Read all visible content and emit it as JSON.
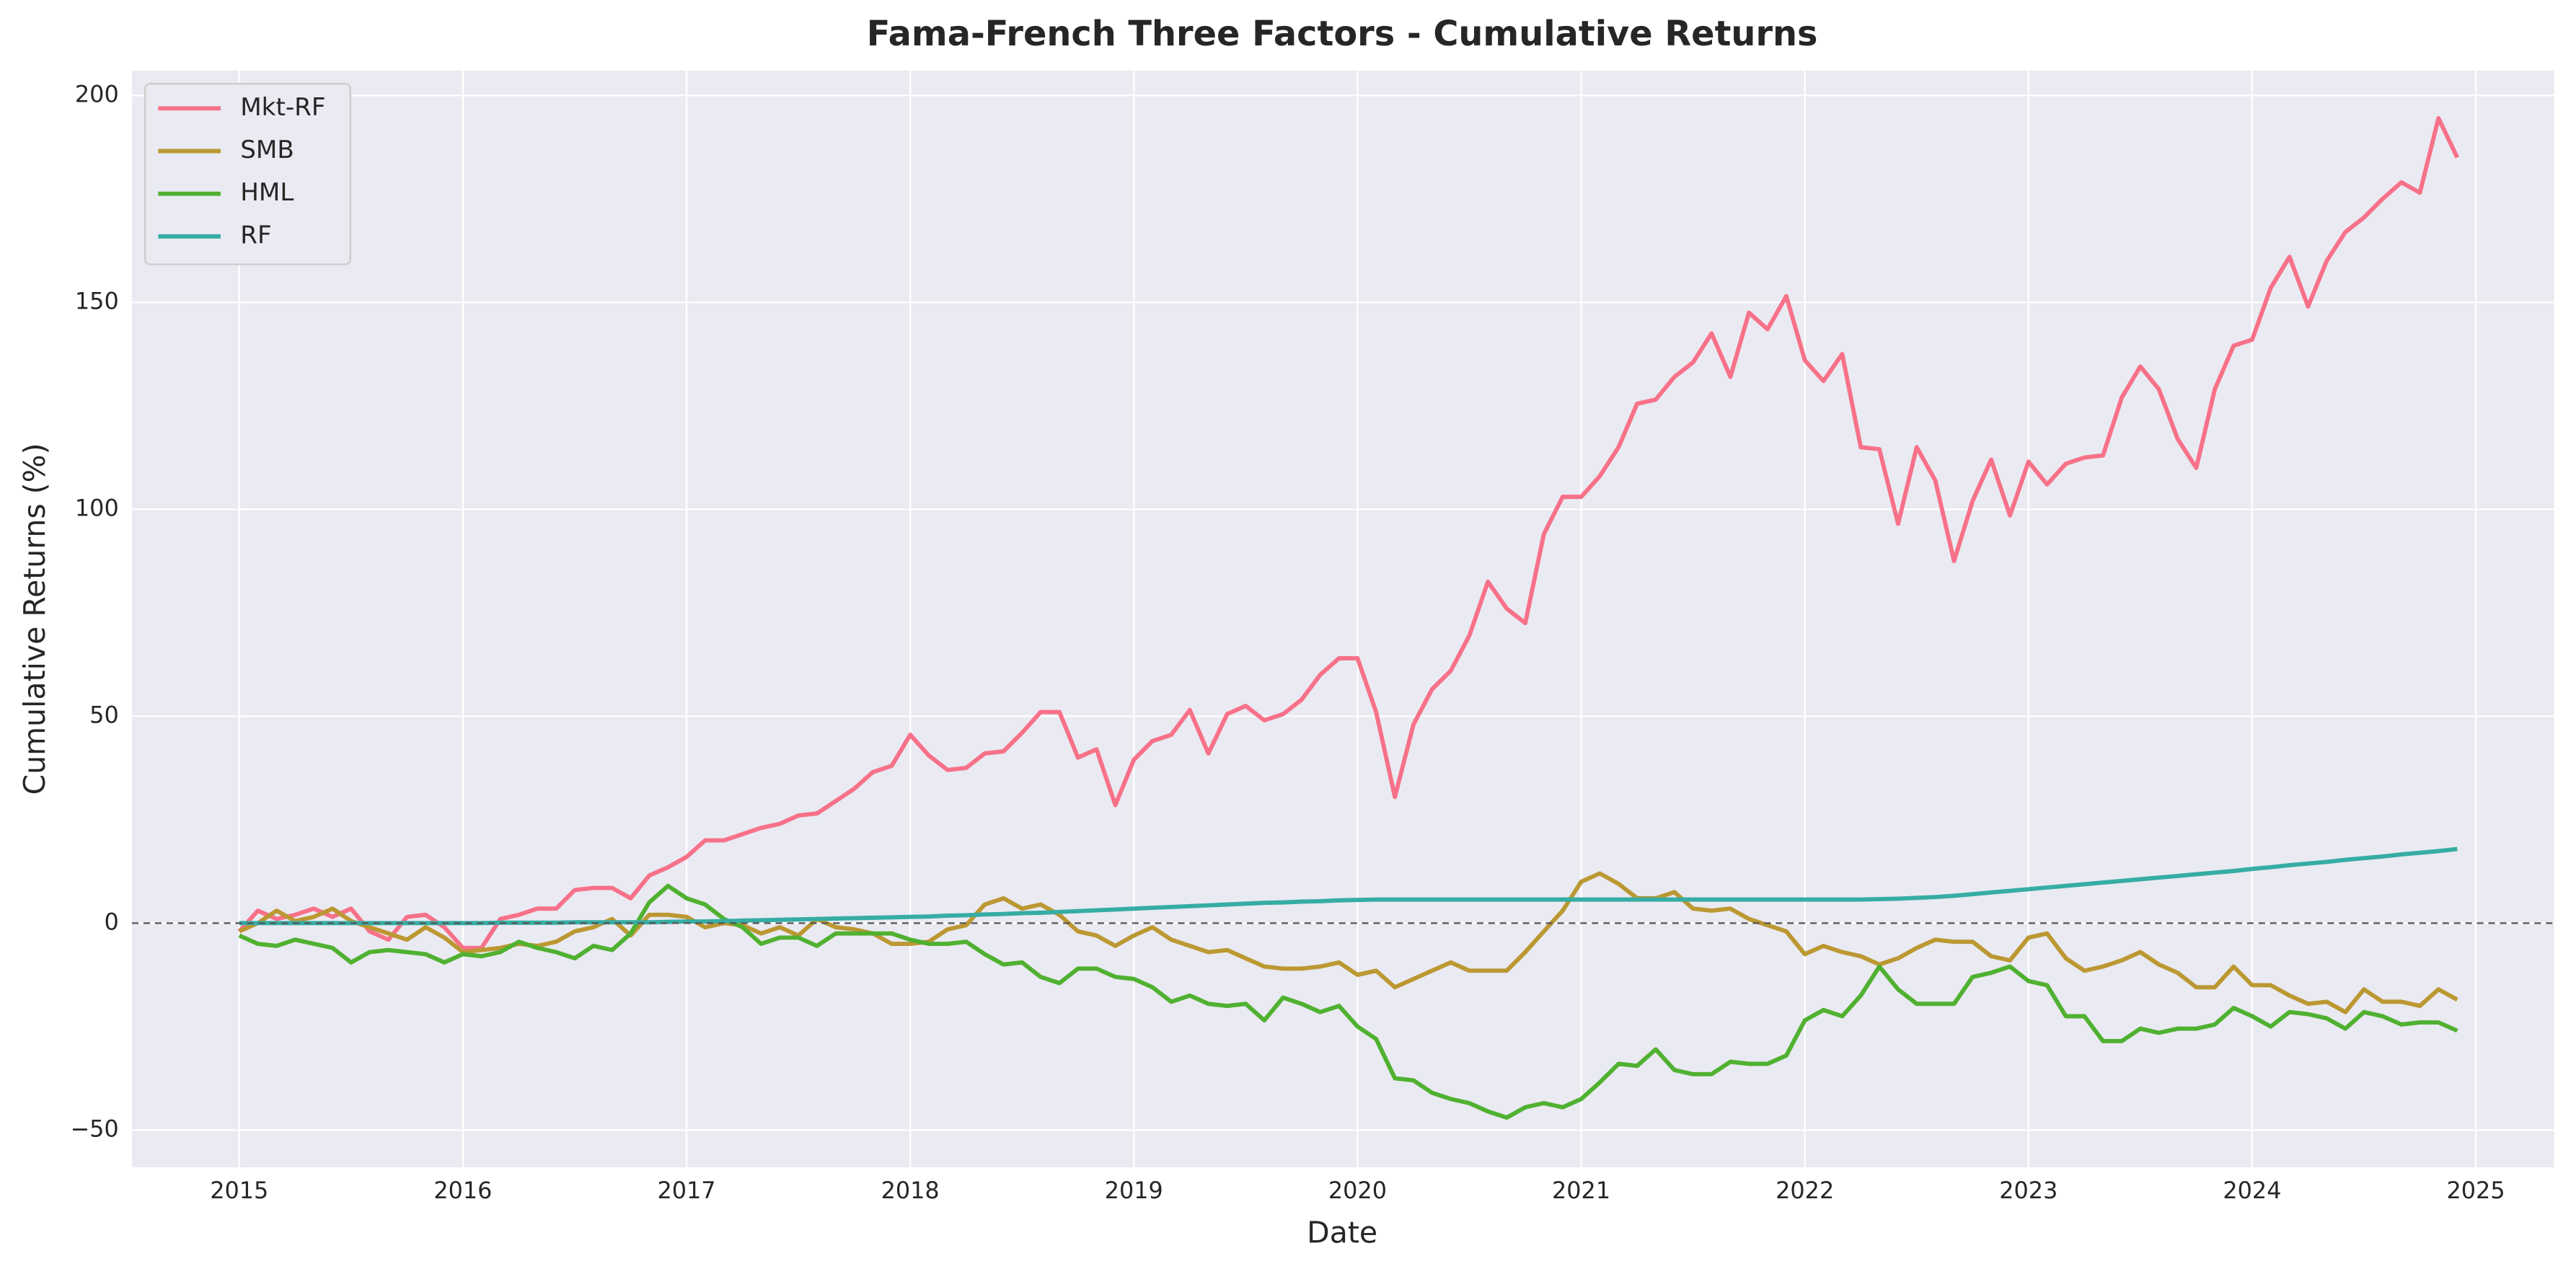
{
  "chart_data": {
    "type": "line",
    "title": "Fama-French Three Factors - Cumulative Returns",
    "x_label": "Date",
    "y_label": "Cumulative Returns (%)",
    "x": [
      2015,
      2015.083,
      2015.167,
      2015.25,
      2015.333,
      2015.417,
      2015.5,
      2015.583,
      2015.667,
      2015.75,
      2015.833,
      2015.917,
      2016,
      2016.083,
      2016.167,
      2016.25,
      2016.333,
      2016.417,
      2016.5,
      2016.583,
      2016.667,
      2016.75,
      2016.833,
      2016.917,
      2017,
      2017.083,
      2017.167,
      2017.25,
      2017.333,
      2017.417,
      2017.5,
      2017.583,
      2017.667,
      2017.75,
      2017.833,
      2017.917,
      2018,
      2018.083,
      2018.167,
      2018.25,
      2018.333,
      2018.417,
      2018.5,
      2018.583,
      2018.667,
      2018.75,
      2018.833,
      2018.917,
      2019,
      2019.083,
      2019.167,
      2019.25,
      2019.333,
      2019.417,
      2019.5,
      2019.583,
      2019.667,
      2019.75,
      2019.833,
      2019.917,
      2020,
      2020.083,
      2020.167,
      2020.25,
      2020.333,
      2020.417,
      2020.5,
      2020.583,
      2020.667,
      2020.75,
      2020.833,
      2020.917,
      2021,
      2021.083,
      2021.167,
      2021.25,
      2021.333,
      2021.417,
      2021.5,
      2021.583,
      2021.667,
      2021.75,
      2021.833,
      2021.917,
      2022,
      2022.083,
      2022.167,
      2022.25,
      2022.333,
      2022.417,
      2022.5,
      2022.583,
      2022.667,
      2022.75,
      2022.833,
      2022.917,
      2023,
      2023.083,
      2023.167,
      2023.25,
      2023.333,
      2023.417,
      2023.5,
      2023.583,
      2023.667,
      2023.75,
      2023.833,
      2023.917,
      2024,
      2024.083,
      2024.167,
      2024.25,
      2024.333,
      2024.417,
      2024.5,
      2024.583,
      2024.667,
      2024.75,
      2024.833,
      2024.917
    ],
    "series": [
      {
        "name": "Mkt-RF",
        "color": "#f77189",
        "values": [
          -2,
          3,
          1,
          2,
          3.5,
          1.5,
          3.5,
          -2,
          -4,
          1.5,
          2,
          -1,
          -6,
          -6,
          1,
          2,
          3.5,
          3.5,
          8,
          8.5,
          8.5,
          6,
          11.5,
          13.5,
          16,
          20,
          20,
          21.5,
          23,
          24,
          26,
          26.5,
          29.5,
          32.5,
          36.5,
          38,
          45.5,
          40.5,
          37,
          37.5,
          41,
          41.5,
          46,
          51,
          51,
          40,
          42,
          28.5,
          39.5,
          44,
          45.5,
          51.5,
          41,
          50.5,
          52.5,
          49,
          50.5,
          54,
          60,
          64,
          64,
          51,
          30.5,
          48,
          56.5,
          61,
          69.5,
          82.5,
          76,
          72.5,
          94,
          103,
          103,
          108,
          115,
          125.5,
          126.5,
          132,
          135.5,
          142.5,
          132,
          147.5,
          143.5,
          151.5,
          136,
          131,
          137.5,
          115,
          114.5,
          96.5,
          115,
          107,
          87.5,
          102,
          112,
          98.5,
          111.5,
          106,
          111,
          112.5,
          113,
          127,
          134.5,
          129,
          117,
          110,
          129,
          139.5,
          141,
          153.5,
          161,
          149,
          160,
          167,
          170.5,
          175,
          179,
          176.5,
          194.5,
          185
        ]
      },
      {
        "name": "SMB",
        "color": "#bb9832",
        "values": [
          -2,
          0,
          3,
          0.5,
          1.5,
          3.5,
          0.5,
          -1,
          -2.5,
          -4,
          -1,
          -3.5,
          -7,
          -6.5,
          -6,
          -5,
          -5.5,
          -4.5,
          -2,
          -1,
          1,
          -3,
          2,
          2,
          1.5,
          -1,
          0,
          -0.5,
          -2.5,
          -1,
          -3,
          1,
          -1,
          -1.5,
          -2.5,
          -5,
          -5,
          -4.5,
          -1.5,
          -0.5,
          4.5,
          6,
          3.5,
          4.5,
          2,
          -2,
          -3,
          -5.5,
          -3,
          -1,
          -4,
          -5.5,
          -7,
          -6.5,
          -8.5,
          -10.5,
          -11,
          -11,
          -10.5,
          -9.5,
          -12.5,
          -11.5,
          -15.5,
          -13.5,
          -11.5,
          -9.5,
          -11.5,
          -11.5,
          -11.5,
          -7,
          -2,
          3,
          10,
          12,
          9.5,
          6,
          6,
          7.5,
          3.5,
          3,
          3.5,
          1,
          -0.5,
          -2,
          -7.5,
          -5.5,
          -7,
          -8,
          -10,
          -8.5,
          -6,
          -4,
          -4.5,
          -4.5,
          -8,
          -9,
          -3.5,
          -2.5,
          -8.5,
          -11.5,
          -10.5,
          -9,
          -7,
          -10,
          -12,
          -15.5,
          -15.5,
          -10.5,
          -15,
          -15,
          -17.5,
          -19.5,
          -19,
          -21.5,
          -16,
          -19,
          -19,
          -20,
          -16,
          -18.5
        ]
      },
      {
        "name": "HML",
        "color": "#50b131",
        "values": [
          -3,
          -5,
          -5.5,
          -4,
          -5,
          -6,
          -9.5,
          -7,
          -6.5,
          -7,
          -7.5,
          -9.5,
          -7.5,
          -8,
          -7,
          -4.5,
          -6,
          -7,
          -8.5,
          -5.5,
          -6.5,
          -2.5,
          5,
          9,
          6,
          4.5,
          1,
          -1,
          -5,
          -3.5,
          -3.5,
          -5.5,
          -2.5,
          -2.5,
          -2.5,
          -2.5,
          -4,
          -5,
          -5,
          -4.5,
          -7.5,
          -10,
          -9.5,
          -13,
          -14.5,
          -11,
          -11,
          -13,
          -13.5,
          -15.5,
          -19,
          -17.5,
          -19.5,
          -20,
          -19.5,
          -23.5,
          -18,
          -19.5,
          -21.5,
          -20,
          -25,
          -28,
          -37.5,
          -38,
          -41,
          -42.5,
          -43.5,
          -45.5,
          -47,
          -44.5,
          -43.5,
          -44.5,
          -42.5,
          -38.5,
          -34,
          -34.5,
          -30.5,
          -35.5,
          -36.5,
          -36.5,
          -33.5,
          -34,
          -34,
          -32,
          -23.5,
          -21,
          -22.5,
          -17.5,
          -10.5,
          -16,
          -19.5,
          -19.5,
          -19.5,
          -13,
          -12,
          -10.5,
          -14,
          -15,
          -22.5,
          -22.5,
          -28.5,
          -28.5,
          -25.5,
          -26.5,
          -25.5,
          -25.5,
          -24.5,
          -20.5,
          -22.5,
          -25,
          -21.5,
          -22,
          -23,
          -25.5,
          -21.5,
          -22.5,
          -24.5,
          -24,
          -24,
          -26
        ]
      },
      {
        "name": "RF",
        "color": "#36ada4",
        "values": [
          0,
          0,
          0,
          0,
          0,
          0,
          0,
          0,
          0,
          0,
          0,
          0,
          0,
          0,
          0.1,
          0.1,
          0.1,
          0.1,
          0.2,
          0.2,
          0.2,
          0.2,
          0.2,
          0.3,
          0.4,
          0.4,
          0.5,
          0.6,
          0.7,
          0.8,
          0.9,
          1,
          1.1,
          1.2,
          1.3,
          1.4,
          1.5,
          1.6,
          1.8,
          1.9,
          2.1,
          2.2,
          2.4,
          2.5,
          2.7,
          2.9,
          3.1,
          3.3,
          3.5,
          3.7,
          3.9,
          4.1,
          4.3,
          4.5,
          4.7,
          4.9,
          5,
          5.2,
          5.3,
          5.5,
          5.6,
          5.7,
          5.7,
          5.7,
          5.7,
          5.7,
          5.7,
          5.7,
          5.7,
          5.7,
          5.7,
          5.7,
          5.7,
          5.7,
          5.7,
          5.7,
          5.7,
          5.7,
          5.7,
          5.7,
          5.7,
          5.7,
          5.7,
          5.7,
          5.7,
          5.7,
          5.7,
          5.7,
          5.8,
          5.9,
          6.1,
          6.3,
          6.6,
          7,
          7.4,
          7.8,
          8.2,
          8.6,
          9,
          9.4,
          9.8,
          10.2,
          10.6,
          11,
          11.4,
          11.8,
          12.2,
          12.6,
          13.1,
          13.5,
          14,
          14.4,
          14.8,
          15.3,
          15.7,
          16.1,
          16.6,
          17,
          17.4,
          17.9
        ]
      }
    ],
    "xlim": [
      2014.52,
      2025.35
    ],
    "ylim": [
      -59,
      206
    ],
    "xticks": [
      2015,
      2016,
      2017,
      2018,
      2019,
      2020,
      2021,
      2022,
      2023,
      2024,
      2025
    ],
    "yticks": [
      {
        "value": -50,
        "label": "−50"
      },
      0,
      50,
      100,
      150,
      200
    ],
    "hline": 0,
    "grid": true,
    "legend": "upper left"
  }
}
